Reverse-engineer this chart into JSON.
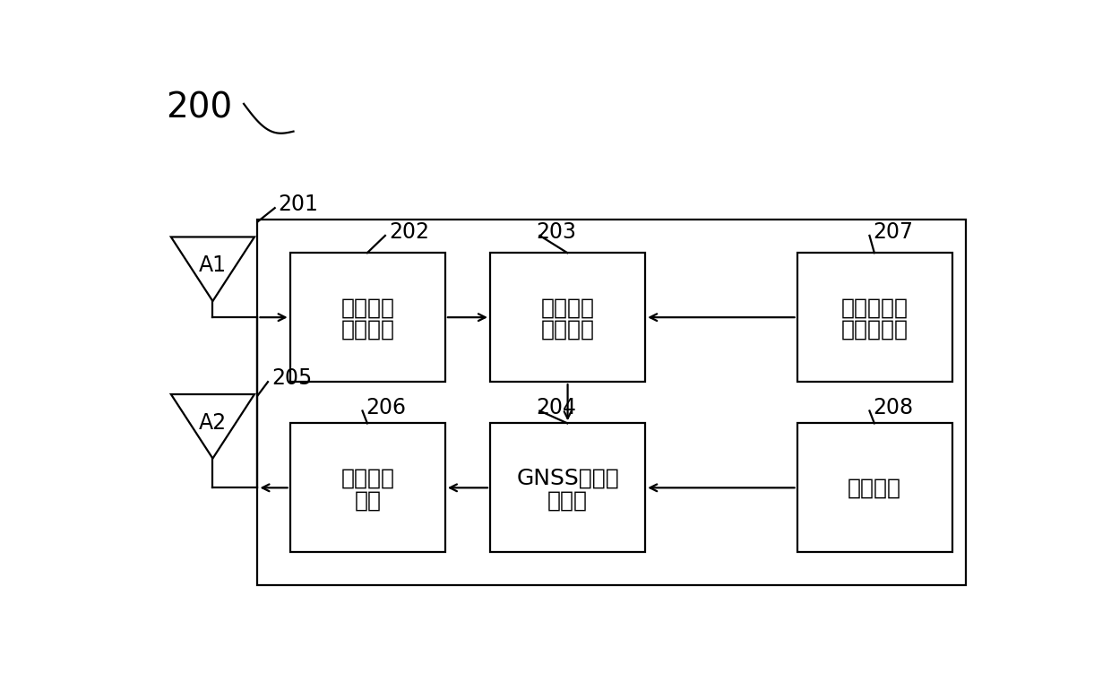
{
  "bg_color": "#ffffff",
  "line_color": "#000000",
  "box_color": "#ffffff",
  "label_200": "200",
  "label_201": "201",
  "label_202": "202",
  "label_203": "203",
  "label_204": "204",
  "label_205": "205",
  "label_206": "206",
  "label_207": "207",
  "label_208": "208",
  "box202_line1": "定位信号",
  "box202_line2": "收发模块",
  "box203_line1": "位置信息",
  "box203_line2": "解算模块",
  "box204_line1": "GNSS信号仿",
  "box204_line2": "真模块",
  "box206_line1": "功率控制",
  "box206_line2": "模块",
  "box207_line1": "运动状态信",
  "box207_line2": "息获取模块",
  "box208_line1": "存储模块",
  "box208_line2": "",
  "antenna_A1": "A1",
  "antenna_A2": "A2",
  "font_size_box": 18,
  "font_size_num": 17
}
